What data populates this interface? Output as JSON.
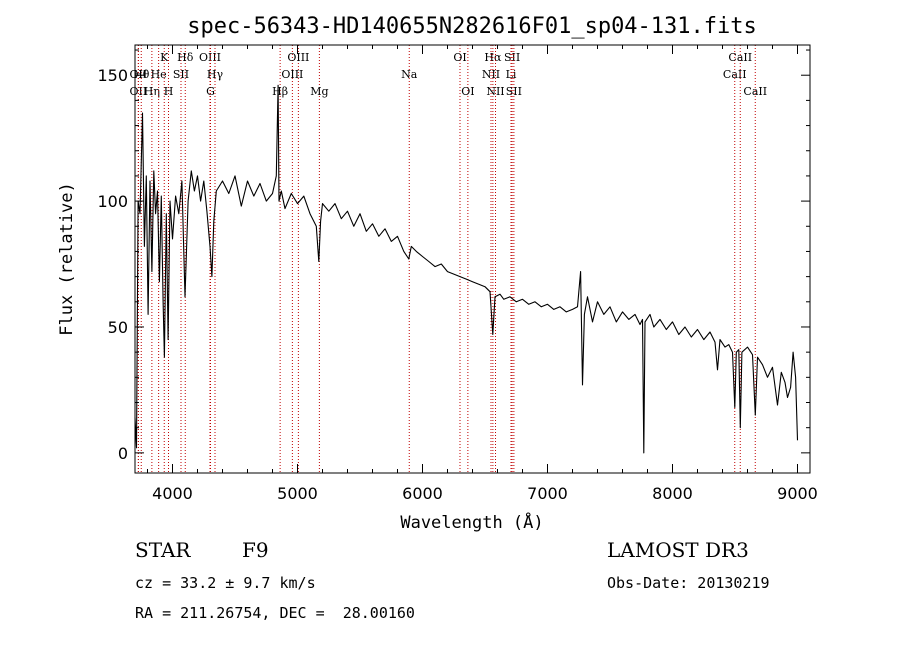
{
  "info": {
    "object_class": "STAR",
    "subclass": "F9",
    "survey": "LAMOST DR3",
    "redshift_text": "cz = 33.2 ± 9.7 km/s",
    "obs_date_text": "Obs-Date: 20130219",
    "coords_text": "RA = 211.26754, DEC =  28.00160"
  },
  "chart_data": {
    "type": "line",
    "title": "spec-56343-HD140655N282616F01_sp04-131.fits",
    "xlabel": "Wavelength (Å)",
    "ylabel": "Flux (relative)",
    "xlim": [
      3700,
      9100
    ],
    "ylim": [
      -8,
      162
    ],
    "xticks": [
      4000,
      5000,
      6000,
      7000,
      8000,
      9000
    ],
    "yticks": [
      0,
      50,
      100,
      150
    ],
    "series": [
      {
        "name": "flux",
        "color": "#000000",
        "points": [
          [
            3700,
            14
          ],
          [
            3712,
            2
          ],
          [
            3725,
            100
          ],
          [
            3740,
            95
          ],
          [
            3760,
            135
          ],
          [
            3775,
            82
          ],
          [
            3790,
            110
          ],
          [
            3805,
            55
          ],
          [
            3820,
            108
          ],
          [
            3835,
            72
          ],
          [
            3850,
            112
          ],
          [
            3865,
            95
          ],
          [
            3880,
            104
          ],
          [
            3895,
            68
          ],
          [
            3910,
            102
          ],
          [
            3925,
            60
          ],
          [
            3935,
            38
          ],
          [
            3950,
            95
          ],
          [
            3965,
            45
          ],
          [
            3980,
            100
          ],
          [
            4000,
            85
          ],
          [
            4025,
            102
          ],
          [
            4050,
            95
          ],
          [
            4075,
            108
          ],
          [
            4100,
            62
          ],
          [
            4125,
            100
          ],
          [
            4150,
            112
          ],
          [
            4175,
            104
          ],
          [
            4200,
            110
          ],
          [
            4225,
            100
          ],
          [
            4250,
            108
          ],
          [
            4275,
            96
          ],
          [
            4300,
            82
          ],
          [
            4315,
            70
          ],
          [
            4330,
            92
          ],
          [
            4350,
            104
          ],
          [
            4400,
            108
          ],
          [
            4450,
            103
          ],
          [
            4500,
            110
          ],
          [
            4550,
            98
          ],
          [
            4600,
            108
          ],
          [
            4650,
            102
          ],
          [
            4700,
            107
          ],
          [
            4750,
            100
          ],
          [
            4800,
            103
          ],
          [
            4830,
            110
          ],
          [
            4845,
            146
          ],
          [
            4852,
            100
          ],
          [
            4870,
            104
          ],
          [
            4900,
            97
          ],
          [
            4950,
            103
          ],
          [
            5000,
            99
          ],
          [
            5050,
            102
          ],
          [
            5100,
            95
          ],
          [
            5150,
            90
          ],
          [
            5170,
            76
          ],
          [
            5185,
            92
          ],
          [
            5200,
            99
          ],
          [
            5250,
            96
          ],
          [
            5300,
            99
          ],
          [
            5350,
            93
          ],
          [
            5400,
            96
          ],
          [
            5450,
            90
          ],
          [
            5500,
            95
          ],
          [
            5550,
            88
          ],
          [
            5600,
            91
          ],
          [
            5650,
            86
          ],
          [
            5700,
            89
          ],
          [
            5750,
            84
          ],
          [
            5800,
            86
          ],
          [
            5850,
            80
          ],
          [
            5890,
            77
          ],
          [
            5910,
            82
          ],
          [
            5950,
            80
          ],
          [
            6000,
            78
          ],
          [
            6050,
            76
          ],
          [
            6100,
            74
          ],
          [
            6150,
            75
          ],
          [
            6200,
            72
          ],
          [
            6250,
            71
          ],
          [
            6300,
            70
          ],
          [
            6350,
            69
          ],
          [
            6400,
            68
          ],
          [
            6450,
            67
          ],
          [
            6500,
            66
          ],
          [
            6540,
            64
          ],
          [
            6562,
            47
          ],
          [
            6580,
            62
          ],
          [
            6620,
            63
          ],
          [
            6650,
            61
          ],
          [
            6700,
            62
          ],
          [
            6750,
            60
          ],
          [
            6800,
            61
          ],
          [
            6850,
            59
          ],
          [
            6900,
            60
          ],
          [
            6950,
            58
          ],
          [
            7000,
            59
          ],
          [
            7050,
            57
          ],
          [
            7100,
            58
          ],
          [
            7150,
            56
          ],
          [
            7200,
            57
          ],
          [
            7240,
            58
          ],
          [
            7265,
            72
          ],
          [
            7280,
            27
          ],
          [
            7295,
            55
          ],
          [
            7320,
            62
          ],
          [
            7360,
            52
          ],
          [
            7400,
            60
          ],
          [
            7450,
            55
          ],
          [
            7500,
            58
          ],
          [
            7550,
            52
          ],
          [
            7600,
            56
          ],
          [
            7650,
            53
          ],
          [
            7700,
            55
          ],
          [
            7740,
            51
          ],
          [
            7760,
            53
          ],
          [
            7770,
            0
          ],
          [
            7780,
            52
          ],
          [
            7820,
            55
          ],
          [
            7850,
            50
          ],
          [
            7900,
            53
          ],
          [
            7950,
            49
          ],
          [
            8000,
            52
          ],
          [
            8050,
            47
          ],
          [
            8100,
            50
          ],
          [
            8150,
            46
          ],
          [
            8200,
            49
          ],
          [
            8250,
            45
          ],
          [
            8300,
            48
          ],
          [
            8340,
            44
          ],
          [
            8360,
            33
          ],
          [
            8380,
            45
          ],
          [
            8420,
            42
          ],
          [
            8450,
            43
          ],
          [
            8480,
            40
          ],
          [
            8498,
            18
          ],
          [
            8510,
            40
          ],
          [
            8530,
            41
          ],
          [
            8542,
            10
          ],
          [
            8555,
            40
          ],
          [
            8600,
            42
          ],
          [
            8640,
            39
          ],
          [
            8662,
            15
          ],
          [
            8680,
            38
          ],
          [
            8720,
            35
          ],
          [
            8760,
            30
          ],
          [
            8800,
            34
          ],
          [
            8840,
            19
          ],
          [
            8870,
            32
          ],
          [
            8900,
            28
          ],
          [
            8920,
            22
          ],
          [
            8945,
            26
          ],
          [
            8965,
            40
          ],
          [
            8985,
            30
          ],
          [
            9000,
            5
          ]
        ]
      }
    ],
    "line_markers": [
      {
        "name": "OII",
        "wavelength": 3727,
        "row": 2
      },
      {
        "name": "Hθ",
        "wavelength": 3750,
        "row": 1
      },
      {
        "name": "OII",
        "wavelength": 3727,
        "row": 1
      },
      {
        "name": "Hη",
        "wavelength": 3835,
        "row": 2
      },
      {
        "name": "He",
        "wavelength": 3889,
        "row": 1
      },
      {
        "name": "K",
        "wavelength": 3934,
        "row": 0
      },
      {
        "name": "H",
        "wavelength": 3968,
        "row": 2
      },
      {
        "name": "SII",
        "wavelength": 4068,
        "row": 1
      },
      {
        "name": "Hδ",
        "wavelength": 4102,
        "row": 0
      },
      {
        "name": "OIII",
        "wavelength": 4300,
        "row": 0
      },
      {
        "name": "G",
        "wavelength": 4304,
        "row": 2
      },
      {
        "name": "Hγ",
        "wavelength": 4340,
        "row": 1
      },
      {
        "name": "Hβ",
        "wavelength": 4861,
        "row": 2
      },
      {
        "name": "OIII",
        "wavelength": 4959,
        "row": 1
      },
      {
        "name": "OIII",
        "wavelength": 5007,
        "row": 0
      },
      {
        "name": "Mg",
        "wavelength": 5175,
        "row": 2
      },
      {
        "name": "Na",
        "wavelength": 5894,
        "row": 1
      },
      {
        "name": "OI",
        "wavelength": 6300,
        "row": 0
      },
      {
        "name": "OI",
        "wavelength": 6363,
        "row": 2
      },
      {
        "name": "Hα",
        "wavelength": 6563,
        "row": 0
      },
      {
        "name": "NII",
        "wavelength": 6548,
        "row": 1
      },
      {
        "name": "NII",
        "wavelength": 6584,
        "row": 2
      },
      {
        "name": "SII",
        "wavelength": 6717,
        "row": 0
      },
      {
        "name": "Li",
        "wavelength": 6708,
        "row": 1
      },
      {
        "name": "SII",
        "wavelength": 6731,
        "row": 2
      },
      {
        "name": "CaII",
        "wavelength": 8498,
        "row": 1
      },
      {
        "name": "CaII",
        "wavelength": 8542,
        "row": 0
      },
      {
        "name": "CaII",
        "wavelength": 8662,
        "row": 2
      }
    ]
  }
}
